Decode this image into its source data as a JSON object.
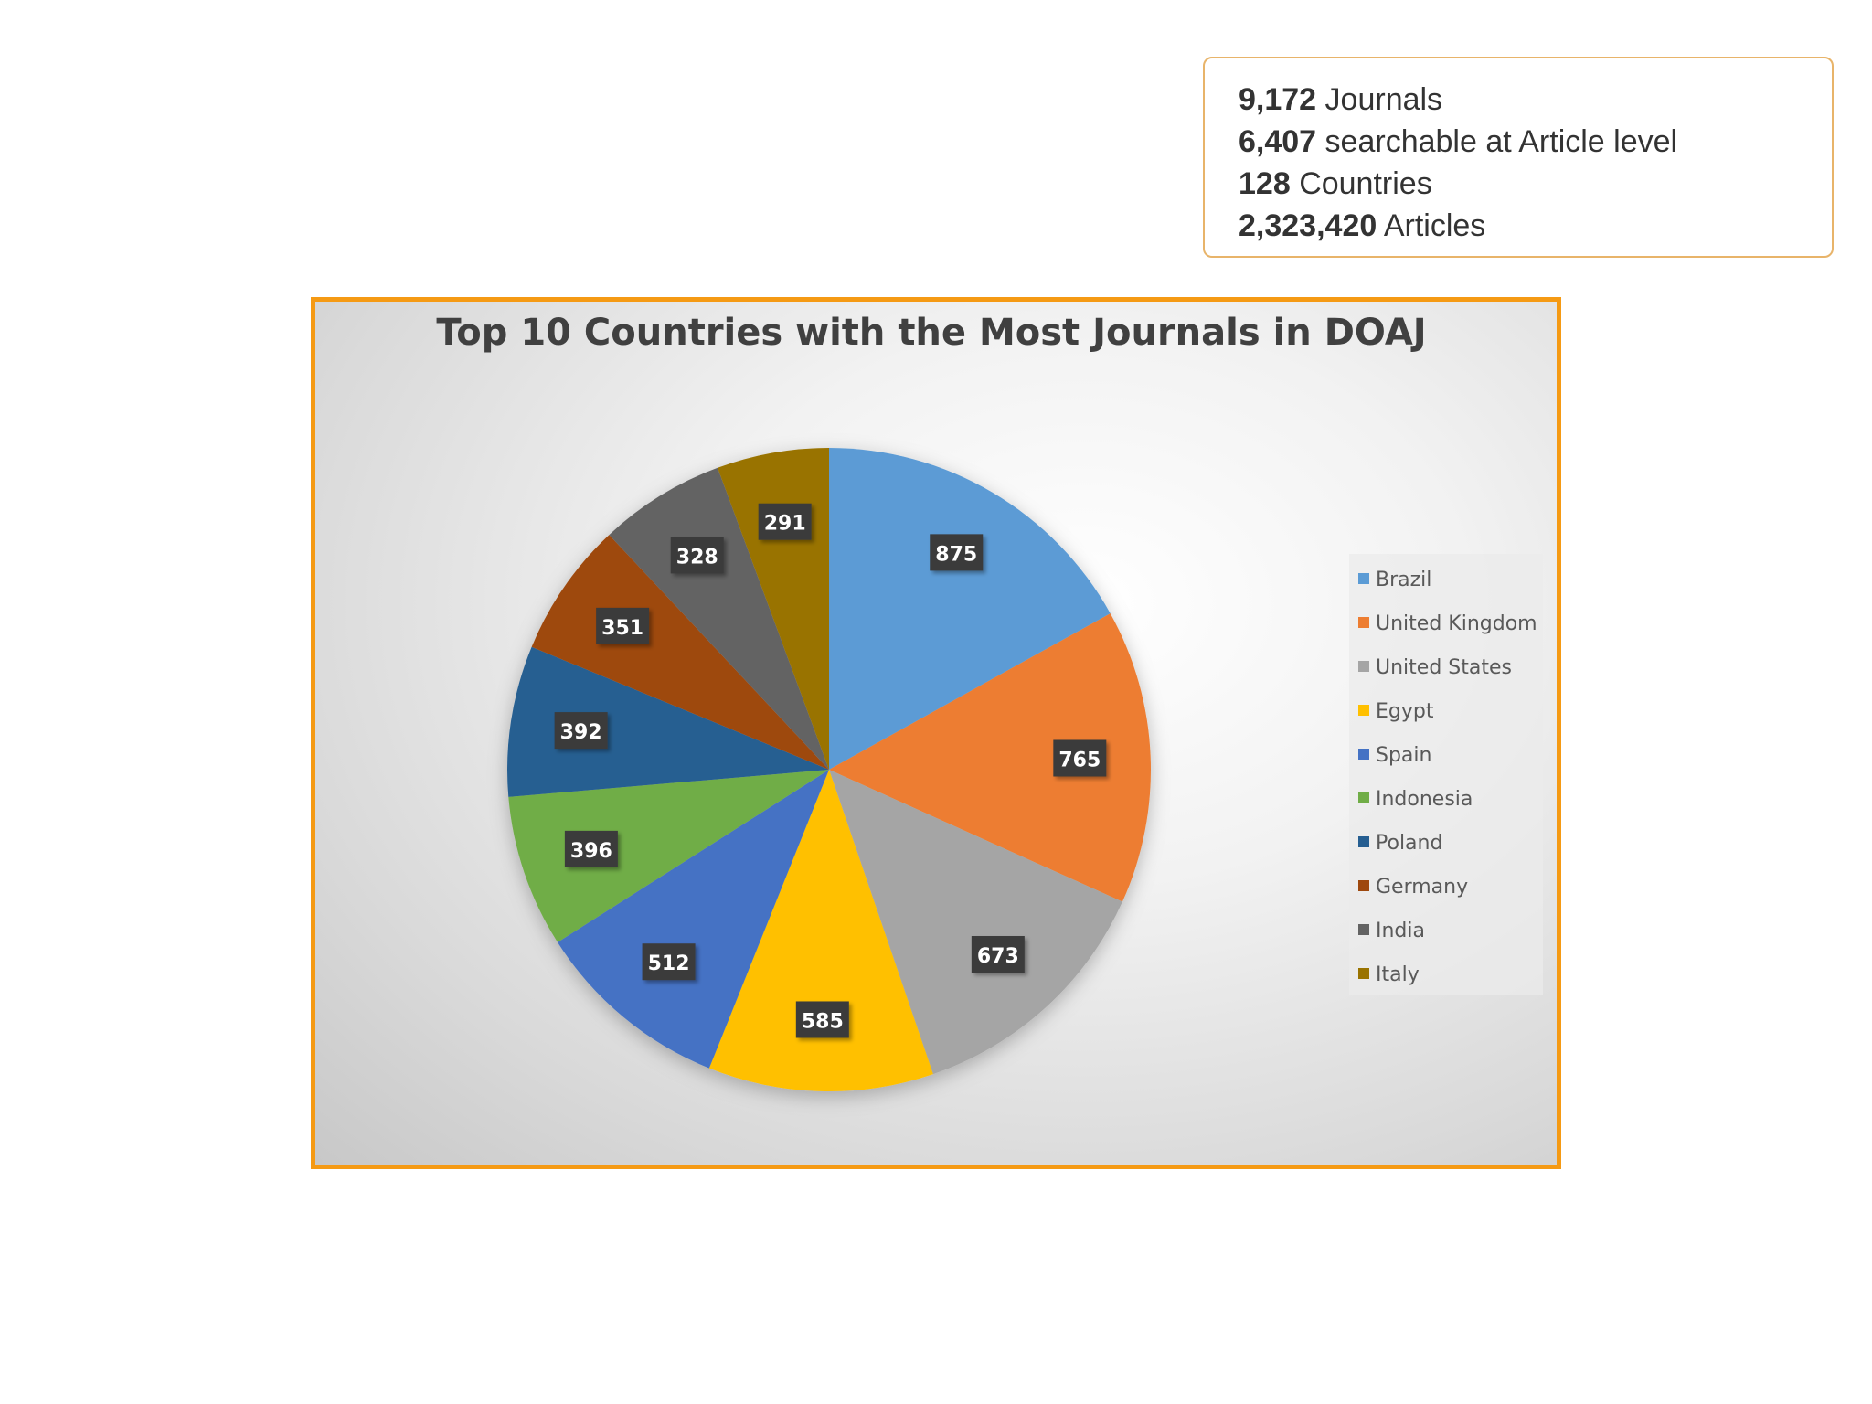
{
  "stats": [
    {
      "value": "9,172",
      "label": "Journals"
    },
    {
      "value": "6,407",
      "label": "searchable at Article level"
    },
    {
      "value": "128",
      "label": "Countries"
    },
    {
      "value": "2,323,420",
      "label": "Articles"
    }
  ],
  "colors": {
    "frame_border": "#f59a14",
    "stats_border": "#e8b46a",
    "data_label_bg": "#3a3a3a"
  },
  "chart_data": {
    "type": "pie",
    "title": "Top 10 Countries with the Most Journals in DOAJ",
    "categories": [
      "Brazil",
      "United Kingdom",
      "United States",
      "Egypt",
      "Spain",
      "Indonesia",
      "Poland",
      "Germany",
      "India",
      "Italy"
    ],
    "values": [
      875,
      765,
      673,
      585,
      512,
      396,
      392,
      351,
      328,
      291
    ],
    "colors": [
      "#5b9bd5",
      "#ed7d31",
      "#a5a5a5",
      "#ffc000",
      "#4472c4",
      "#70ad47",
      "#255e91",
      "#9e480e",
      "#636363",
      "#997300"
    ],
    "data_labels": [
      "875",
      "765",
      "673",
      "585",
      "512",
      "396",
      "392",
      "351",
      "328",
      "291"
    ],
    "start_angle_deg": 0,
    "direction": "clockwise",
    "legend_position": "right"
  }
}
